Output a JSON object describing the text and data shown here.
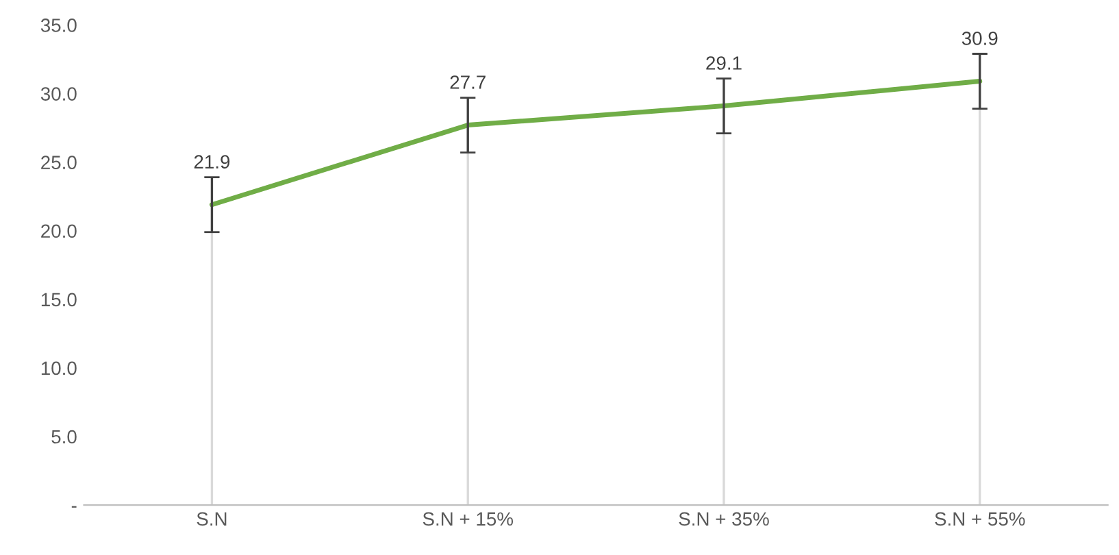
{
  "chart_data": {
    "type": "line",
    "categories": [
      "S.N",
      "S.N + 15%",
      "S.N + 35%",
      "S.N + 55%"
    ],
    "series": [
      {
        "color": "#70ad47",
        "values": [
          21.9,
          27.7,
          29.1,
          30.9
        ],
        "errors": [
          2,
          2,
          2,
          2
        ]
      }
    ],
    "ylim": [
      0,
      35
    ],
    "yticks": [
      {
        "value": 0,
        "label": "-"
      },
      {
        "value": 5,
        "label": "5.0"
      },
      {
        "value": 10,
        "label": "10.0"
      },
      {
        "value": 15,
        "label": "15.0"
      },
      {
        "value": 20,
        "label": "20.0"
      },
      {
        "value": 25,
        "label": "25.0"
      },
      {
        "value": 30,
        "label": "30.0"
      },
      {
        "value": 35,
        "label": "35.0"
      }
    ],
    "data_labels": true,
    "grid": "x",
    "legend": false,
    "marker": "none",
    "line_style": "solid"
  }
}
